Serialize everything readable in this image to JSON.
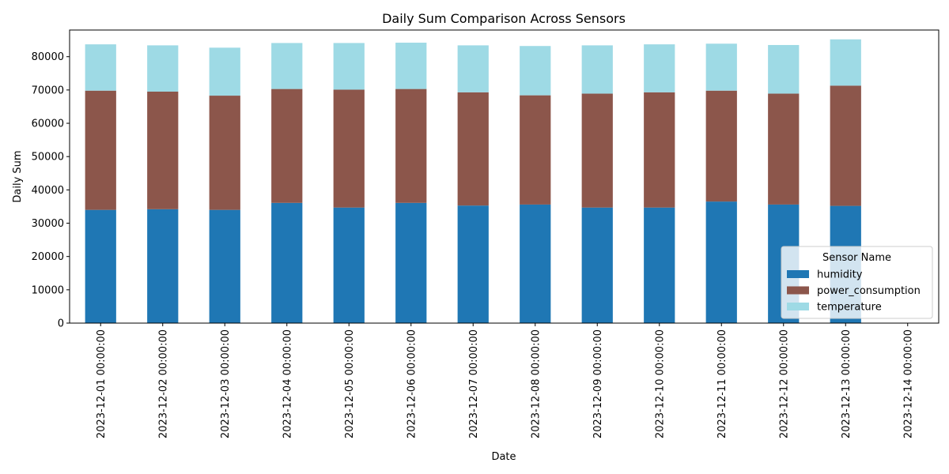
{
  "chart_data": {
    "type": "bar",
    "stacked": true,
    "title": "Daily Sum Comparison Across Sensors",
    "xlabel": "Date",
    "ylabel": "Daily Sum",
    "ylim": [
      0,
      88000
    ],
    "yticks": [
      0,
      10000,
      20000,
      30000,
      40000,
      50000,
      60000,
      70000,
      80000
    ],
    "grid": false,
    "legend": {
      "title": "Sensor Name",
      "position": "lower-right"
    },
    "categories": [
      "2023-12-01 00:00:00",
      "2023-12-02 00:00:00",
      "2023-12-03 00:00:00",
      "2023-12-04 00:00:00",
      "2023-12-05 00:00:00",
      "2023-12-06 00:00:00",
      "2023-12-07 00:00:00",
      "2023-12-08 00:00:00",
      "2023-12-09 00:00:00",
      "2023-12-10 00:00:00",
      "2023-12-11 00:00:00",
      "2023-12-12 00:00:00",
      "2023-12-13 00:00:00",
      "2023-12-14 00:00:00"
    ],
    "series": [
      {
        "name": "humidity",
        "color": "#1f77b4",
        "values": [
          34000,
          34200,
          34000,
          36100,
          34700,
          36100,
          35300,
          35600,
          34700,
          34700,
          36500,
          35600,
          35200,
          0
        ]
      },
      {
        "name": "power_consumption",
        "color": "#8c564b",
        "values": [
          35800,
          35300,
          34300,
          34200,
          35400,
          34200,
          34000,
          32800,
          34200,
          34600,
          33300,
          33300,
          36100,
          0
        ]
      },
      {
        "name": "temperature",
        "color": "#9edae5",
        "values": [
          13900,
          13900,
          14400,
          13800,
          14000,
          13900,
          14100,
          14800,
          14500,
          14400,
          14100,
          14600,
          13900,
          0
        ]
      }
    ]
  }
}
